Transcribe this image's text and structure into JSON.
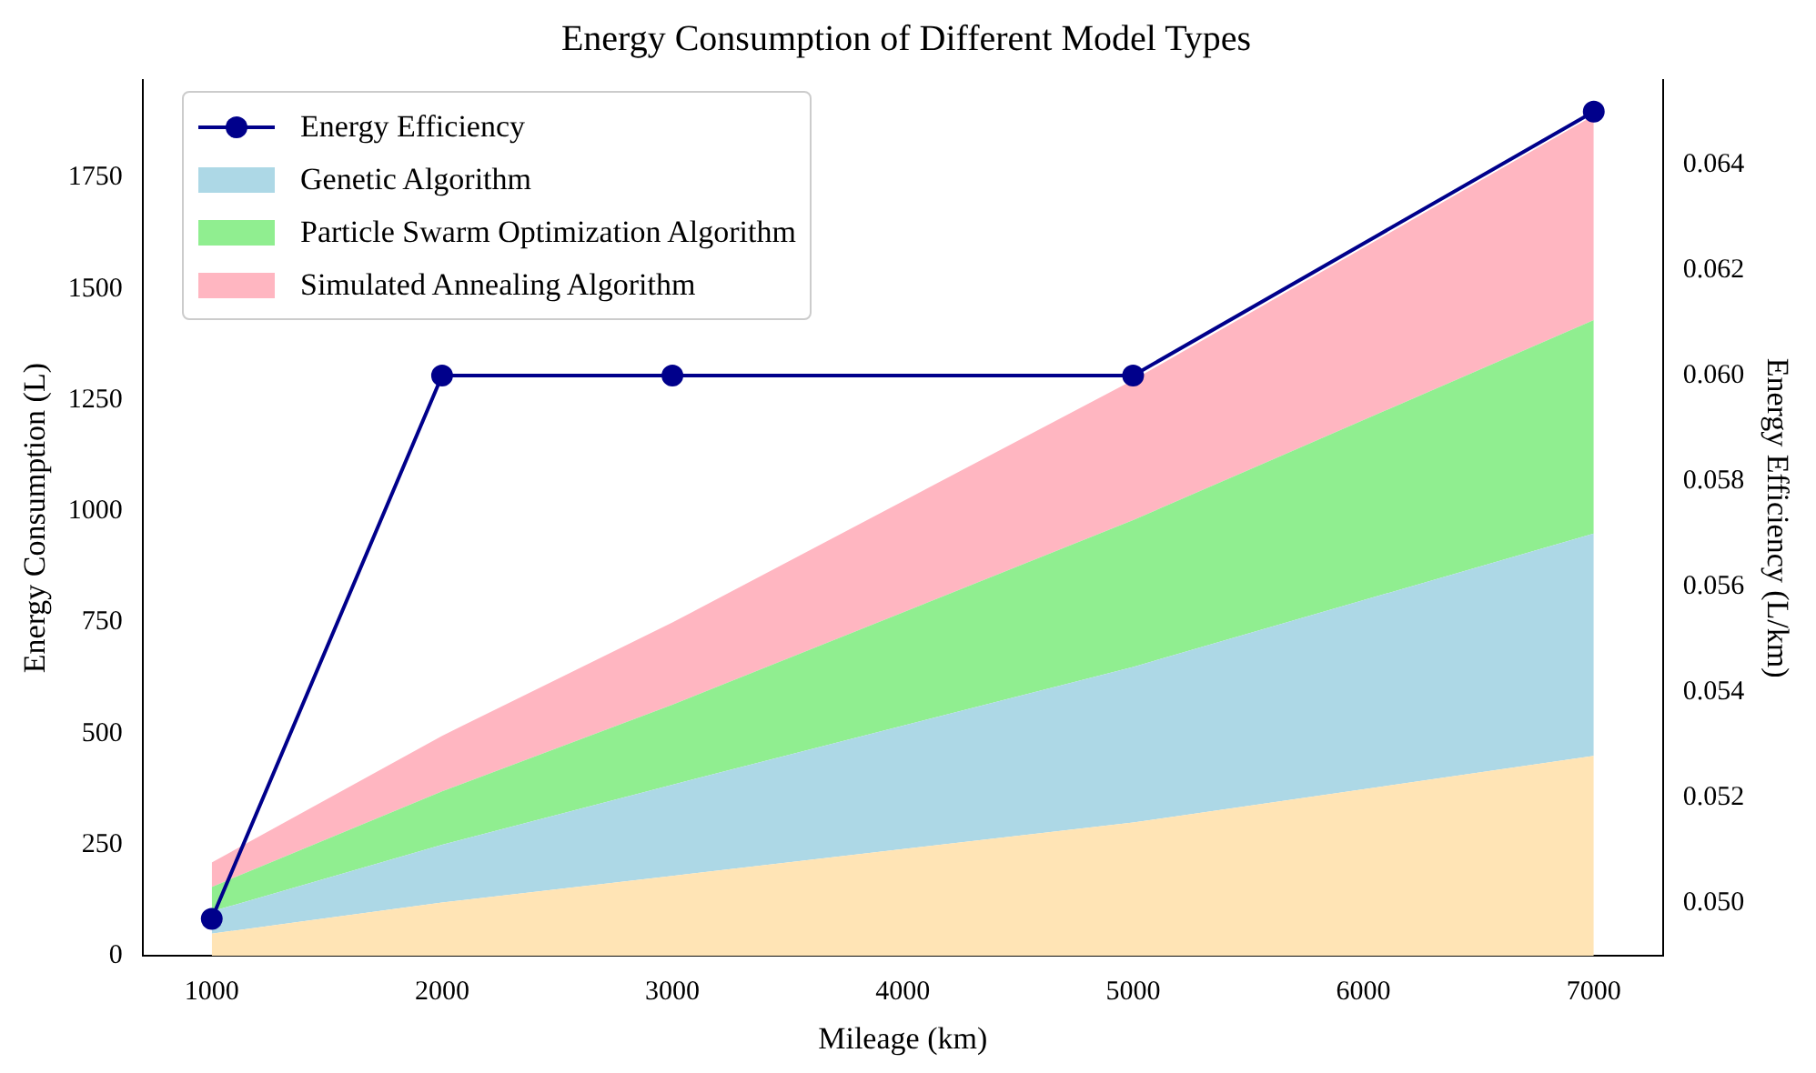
{
  "chart_data": {
    "type": "area",
    "title": "Energy Consumption of Different Model Types",
    "xlabel": "Mileage (km)",
    "ylabel": "Energy Consumption (L)",
    "y2label": "Energy Efficiency (L/km)",
    "x": [
      1000,
      2000,
      3000,
      5000,
      7000
    ],
    "stacked": true,
    "series": [
      {
        "color": "#ffe4b5",
        "values": [
          50,
          120,
          180,
          300,
          450
        ]
      },
      {
        "name": "Genetic Algorithm",
        "color": "#add8e6",
        "values": [
          50,
          130,
          205,
          350,
          500
        ]
      },
      {
        "name": "Particle Swarm Optimization Algorithm",
        "color": "#90ee90",
        "values": [
          55,
          120,
          180,
          330,
          480
        ]
      },
      {
        "name": "Simulated Annealing Algorithm",
        "color": "#ffb6c1",
        "values": [
          55,
          125,
          185,
          315,
          460
        ]
      },
      {
        "name": "Energy Efficiency",
        "type": "line",
        "axis": "y2",
        "color": "#00008b",
        "marker": "circle",
        "values": [
          0.0497,
          0.06,
          0.06,
          0.06,
          0.065
        ]
      }
    ],
    "xlim": [
      700,
      7300
    ],
    "xticks": [
      1000,
      2000,
      3000,
      4000,
      5000,
      6000,
      7000
    ],
    "ylim": [
      0,
      1970
    ],
    "yticks": [
      0,
      250,
      500,
      750,
      1000,
      1250,
      1500,
      1750
    ],
    "y2lim": [
      0.049,
      0.0656
    ],
    "y2ticks": [
      {
        "value": 0.05,
        "label": "0.050"
      },
      {
        "value": 0.052,
        "label": "0.052"
      },
      {
        "value": 0.054,
        "label": "0.054"
      },
      {
        "value": 0.056,
        "label": "0.056"
      },
      {
        "value": 0.058,
        "label": "0.058"
      },
      {
        "value": 0.06,
        "label": "0.060"
      },
      {
        "value": 0.062,
        "label": "0.062"
      },
      {
        "value": 0.064,
        "label": "0.064"
      }
    ],
    "grid": false,
    "legend": "top left",
    "line_style": "solid"
  }
}
